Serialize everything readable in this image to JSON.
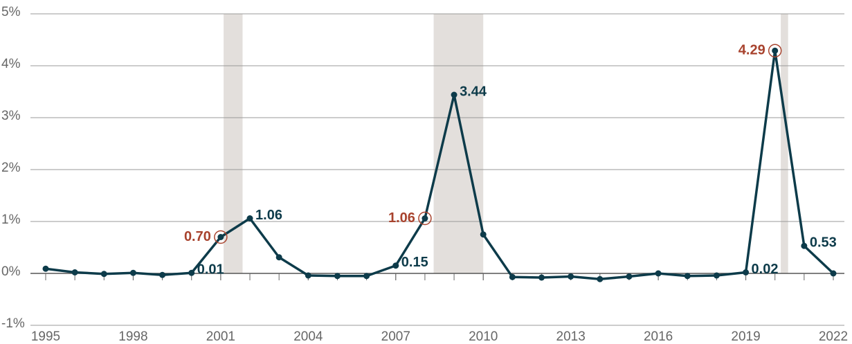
{
  "chart_data": {
    "type": "line",
    "x": [
      1995,
      1996,
      1997,
      1998,
      1999,
      2000,
      2001,
      2002,
      2003,
      2004,
      2005,
      2006,
      2007,
      2008,
      2009,
      2010,
      2011,
      2012,
      2013,
      2014,
      2015,
      2016,
      2017,
      2018,
      2019,
      2020,
      2021,
      2022
    ],
    "series": [
      {
        "color": "#0d3b4a",
        "values": [
          0.09,
          0.02,
          -0.01,
          0.01,
          -0.03,
          0.01,
          0.7,
          1.06,
          0.31,
          -0.04,
          -0.05,
          -0.05,
          0.15,
          1.06,
          3.44,
          0.75,
          -0.07,
          -0.08,
          -0.06,
          -0.11,
          -0.06,
          0.0,
          -0.05,
          -0.04,
          0.02,
          4.29,
          0.53,
          0.0
        ],
        "value_labels": [
          null,
          null,
          null,
          null,
          null,
          "0.01",
          "0.70",
          "1.06",
          null,
          null,
          null,
          null,
          "0.15",
          "1.06",
          "3.44",
          null,
          null,
          null,
          null,
          null,
          null,
          null,
          null,
          null,
          "0.02",
          "4.29",
          "0.53",
          null
        ]
      }
    ],
    "highlighted": [
      2001,
      2008,
      2020
    ],
    "highlight_color": "#a8432e",
    "shaded_ranges": [
      [
        2001.1,
        2001.75
      ],
      [
        2008.3,
        2010.0
      ],
      [
        2020.2,
        2020.45
      ]
    ],
    "shade_color": "#e3dfdc",
    "xlim": [
      1995,
      2022
    ],
    "xticks": [
      1995,
      1998,
      2001,
      2004,
      2007,
      2010,
      2013,
      2016,
      2019,
      2022
    ],
    "ylim": [
      -1,
      5
    ],
    "yticks": [
      {
        "value": -1,
        "label": "-1%"
      },
      {
        "value": 0,
        "label": "0%"
      },
      {
        "value": 1,
        "label": "1%"
      },
      {
        "value": 2,
        "label": "2%"
      },
      {
        "value": 3,
        "label": "3%"
      },
      {
        "value": 4,
        "label": "4%"
      },
      {
        "value": 5,
        "label": "5%"
      }
    ],
    "grid": true
  }
}
